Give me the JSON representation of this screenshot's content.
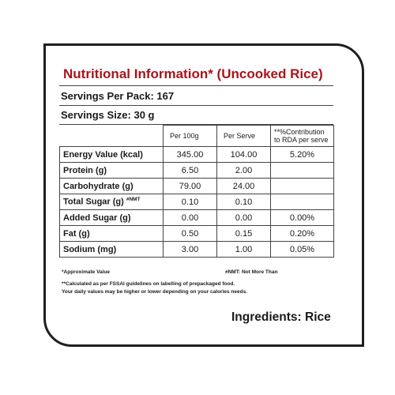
{
  "title": "Nutritional Information* (Uncooked Rice)",
  "servings_per_pack": "Servings Per Pack: 167",
  "serving_size": "Servings Size: 30 g",
  "table": {
    "headers": [
      "Per 100g",
      "Per Serve",
      "**%Contribution to RDA per serve"
    ],
    "rows": [
      {
        "nutrient": "Energy Value (kcal)",
        "sup": "",
        "per100": "345.00",
        "perserve": "104.00",
        "rda": "5.20%"
      },
      {
        "nutrient": "Protein (g)",
        "sup": "",
        "per100": "6.50",
        "perserve": "2.00",
        "rda": ""
      },
      {
        "nutrient": "Carbohydrate (g)",
        "sup": "",
        "per100": "79.00",
        "perserve": "24.00",
        "rda": ""
      },
      {
        "nutrient": "Total Sugar (g)",
        "sup": "#NMT",
        "per100": "0.10",
        "perserve": "0.10",
        "rda": ""
      },
      {
        "nutrient": "Added Sugar (g)",
        "sup": "",
        "per100": "0.00",
        "perserve": "0.00",
        "rda": "0.00%"
      },
      {
        "nutrient": "Fat (g)",
        "sup": "",
        "per100": "0.50",
        "perserve": "0.15",
        "rda": "0.20%"
      },
      {
        "nutrient": "Sodium (mg)",
        "sup": "",
        "per100": "3.00",
        "perserve": "1.00",
        "rda": "0.05%"
      }
    ]
  },
  "footnotes": {
    "approx": "*Approximate Value",
    "nmt": "#NMT: Not More Than",
    "calc": "**Calculated as per FSSAI guidelines on labelling of prepackaged food.",
    "daily": "Your daily values may be higher or lower depending on your calories needs."
  },
  "ingredients": "Ingredients: Rice"
}
